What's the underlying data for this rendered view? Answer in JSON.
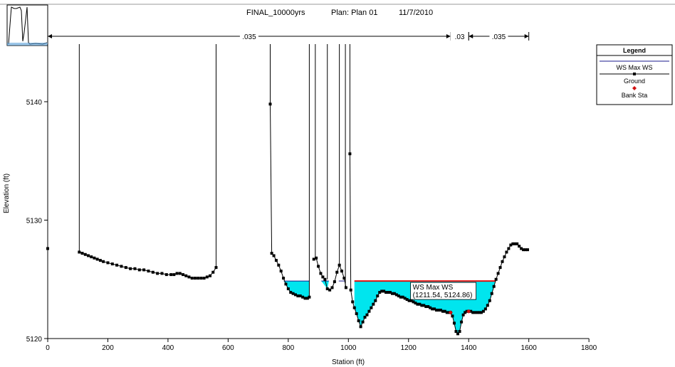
{
  "header": {
    "plan_name": "FINAL_10000yrs",
    "plan_label": "Plan:  Plan 01",
    "date": "11/7/2010"
  },
  "colors": {
    "water_fill": "#00e5ee",
    "water_line": "#1a1a8c",
    "bank_line": "#e01010",
    "ground": "#000000",
    "bank_marker": "#d01010"
  },
  "legend": {
    "title": "Legend",
    "items": [
      "WS Max WS",
      "Ground",
      "Bank Sta"
    ]
  },
  "manning": {
    "labels": [
      ".035",
      ".03",
      ".035"
    ],
    "ranges": [
      [
        0,
        1340
      ],
      [
        1340,
        1400
      ],
      [
        1400,
        1600
      ]
    ]
  },
  "tooltip": {
    "line1": "WS Max WS",
    "line2": "(1211.54, 5124.86)",
    "x": 1211.54,
    "y": 5124.86
  },
  "chart_data": {
    "type": "line",
    "title": "FINAL_10000yrs    Plan:  Plan 01    11/7/2010",
    "xlabel": "Station (ft)",
    "ylabel": "Elevation (ft)",
    "xlim": [
      0,
      1800
    ],
    "ylim": [
      5120,
      5147
    ],
    "xticks": [
      0,
      200,
      400,
      600,
      800,
      1000,
      1200,
      1400,
      1600,
      1800
    ],
    "yticks": [
      5120,
      5130,
      5140
    ],
    "ws_elevation": 5124.86,
    "ws_segments": [
      [
        785,
        870
      ],
      [
        910,
        935
      ],
      [
        968,
        990
      ],
      [
        1020,
        1490
      ]
    ],
    "bank_stations": [
      [
        1340,
        5122.2
      ],
      [
        1400,
        5122.3
      ]
    ],
    "walls": [
      [
        0,
        5127.6
      ],
      [
        105,
        5127.3
      ],
      [
        560,
        5126
      ],
      [
        740,
        5139.8
      ],
      [
        870,
        5123.5
      ],
      [
        890,
        5126.7
      ],
      [
        930,
        5125
      ],
      [
        970,
        5126.2
      ],
      [
        990,
        5124.3
      ],
      [
        1005,
        5135.6
      ]
    ],
    "ground_segments": [
      [
        [
          0,
          5127.6
        ]
      ],
      [
        [
          105,
          5127.3
        ],
        [
          115,
          5127.2
        ],
        [
          125,
          5127.1
        ],
        [
          135,
          5127.0
        ],
        [
          145,
          5126.9
        ],
        [
          155,
          5126.8
        ],
        [
          165,
          5126.7
        ],
        [
          175,
          5126.6
        ],
        [
          185,
          5126.5
        ],
        [
          200,
          5126.4
        ],
        [
          215,
          5126.3
        ],
        [
          230,
          5126.2
        ],
        [
          245,
          5126.1
        ],
        [
          260,
          5126.0
        ],
        [
          275,
          5125.9
        ],
        [
          290,
          5125.9
        ],
        [
          305,
          5125.8
        ],
        [
          320,
          5125.8
        ],
        [
          335,
          5125.7
        ],
        [
          350,
          5125.6
        ],
        [
          365,
          5125.5
        ],
        [
          380,
          5125.5
        ],
        [
          395,
          5125.4
        ],
        [
          410,
          5125.4
        ],
        [
          420,
          5125.4
        ],
        [
          430,
          5125.5
        ],
        [
          440,
          5125.5
        ],
        [
          450,
          5125.4
        ],
        [
          460,
          5125.3
        ],
        [
          470,
          5125.2
        ],
        [
          480,
          5125.1
        ],
        [
          490,
          5125.1
        ],
        [
          500,
          5125.1
        ],
        [
          510,
          5125.1
        ],
        [
          520,
          5125.1
        ],
        [
          530,
          5125.2
        ],
        [
          540,
          5125.3
        ],
        [
          550,
          5125.6
        ],
        [
          560,
          5126.0
        ]
      ],
      [
        [
          740,
          5139.8
        ],
        [
          745,
          5127.2
        ],
        [
          752,
          5127.0
        ],
        [
          760,
          5126.6
        ],
        [
          768,
          5126.2
        ],
        [
          776,
          5125.7
        ],
        [
          784,
          5125.1
        ],
        [
          792,
          5124.6
        ],
        [
          800,
          5124.2
        ],
        [
          808,
          5123.9
        ],
        [
          816,
          5123.8
        ],
        [
          824,
          5123.7
        ],
        [
          832,
          5123.6
        ],
        [
          840,
          5123.6
        ],
        [
          848,
          5123.5
        ],
        [
          856,
          5123.4
        ],
        [
          864,
          5123.4
        ],
        [
          870,
          5123.5
        ]
      ],
      [
        [
          885,
          5126.7
        ],
        [
          893,
          5126.8
        ],
        [
          900,
          5126.1
        ],
        [
          908,
          5125.5
        ],
        [
          915,
          5125.2
        ],
        [
          922,
          5125.0
        ],
        [
          930,
          5124.2
        ],
        [
          938,
          5124.1
        ],
        [
          946,
          5124.3
        ],
        [
          954,
          5124.8
        ],
        [
          962,
          5125.6
        ],
        [
          970,
          5126.2
        ],
        [
          978,
          5125.7
        ],
        [
          986,
          5125.1
        ],
        [
          992,
          5124.3
        ]
      ],
      [
        [
          1005,
          5135.6
        ],
        [
          1008,
          5124.1
        ],
        [
          1014,
          5123.1
        ],
        [
          1020,
          5122.6
        ],
        [
          1027,
          5122.1
        ],
        [
          1034,
          5121.5
        ],
        [
          1041,
          5121.0
        ],
        [
          1048,
          5121.4
        ],
        [
          1055,
          5121.8
        ],
        [
          1062,
          5122.0
        ],
        [
          1069,
          5122.3
        ],
        [
          1076,
          5122.6
        ],
        [
          1083,
          5122.9
        ],
        [
          1090,
          5123.2
        ],
        [
          1097,
          5123.6
        ],
        [
          1104,
          5123.9
        ],
        [
          1111,
          5124.0
        ],
        [
          1118,
          5124.0
        ],
        [
          1125,
          5123.9
        ],
        [
          1132,
          5123.9
        ],
        [
          1139,
          5123.9
        ],
        [
          1146,
          5123.8
        ],
        [
          1153,
          5123.8
        ],
        [
          1160,
          5123.7
        ],
        [
          1167,
          5123.6
        ],
        [
          1174,
          5123.5
        ],
        [
          1181,
          5123.5
        ],
        [
          1188,
          5123.4
        ],
        [
          1195,
          5123.3
        ],
        [
          1202,
          5123.2
        ],
        [
          1209,
          5123.2
        ],
        [
          1216,
          5123.1
        ],
        [
          1223,
          5123.0
        ],
        [
          1230,
          5122.9
        ],
        [
          1237,
          5122.9
        ],
        [
          1244,
          5122.8
        ],
        [
          1251,
          5122.8
        ],
        [
          1258,
          5122.7
        ],
        [
          1265,
          5122.7
        ],
        [
          1272,
          5122.6
        ],
        [
          1279,
          5122.5
        ],
        [
          1286,
          5122.5
        ],
        [
          1293,
          5122.4
        ],
        [
          1300,
          5122.4
        ],
        [
          1307,
          5122.4
        ],
        [
          1314,
          5122.3
        ],
        [
          1321,
          5122.3
        ],
        [
          1328,
          5122.2
        ],
        [
          1335,
          5122.2
        ],
        [
          1340,
          5122.2
        ],
        [
          1346,
          5121.9
        ],
        [
          1352,
          5121.3
        ],
        [
          1358,
          5120.6
        ],
        [
          1364,
          5120.4
        ],
        [
          1370,
          5120.6
        ],
        [
          1376,
          5121.4
        ],
        [
          1382,
          5122.0
        ],
        [
          1388,
          5122.2
        ],
        [
          1394,
          5122.3
        ],
        [
          1400,
          5122.3
        ],
        [
          1407,
          5122.3
        ],
        [
          1414,
          5122.2
        ],
        [
          1421,
          5122.2
        ],
        [
          1428,
          5122.2
        ],
        [
          1435,
          5122.2
        ],
        [
          1442,
          5122.2
        ],
        [
          1449,
          5122.3
        ],
        [
          1456,
          5122.5
        ],
        [
          1463,
          5122.8
        ],
        [
          1470,
          5123.2
        ],
        [
          1477,
          5123.8
        ],
        [
          1484,
          5124.4
        ],
        [
          1491,
          5125.0
        ],
        [
          1498,
          5125.5
        ],
        [
          1505,
          5126.0
        ],
        [
          1512,
          5126.5
        ],
        [
          1519,
          5126.9
        ],
        [
          1526,
          5127.3
        ],
        [
          1533,
          5127.6
        ],
        [
          1540,
          5127.9
        ],
        [
          1547,
          5128.0
        ],
        [
          1554,
          5128.0
        ],
        [
          1561,
          5128.0
        ],
        [
          1568,
          5127.8
        ],
        [
          1575,
          5127.6
        ],
        [
          1582,
          5127.5
        ],
        [
          1589,
          5127.5
        ],
        [
          1596,
          5127.5
        ]
      ]
    ],
    "grid": false,
    "legend_position": "right"
  }
}
